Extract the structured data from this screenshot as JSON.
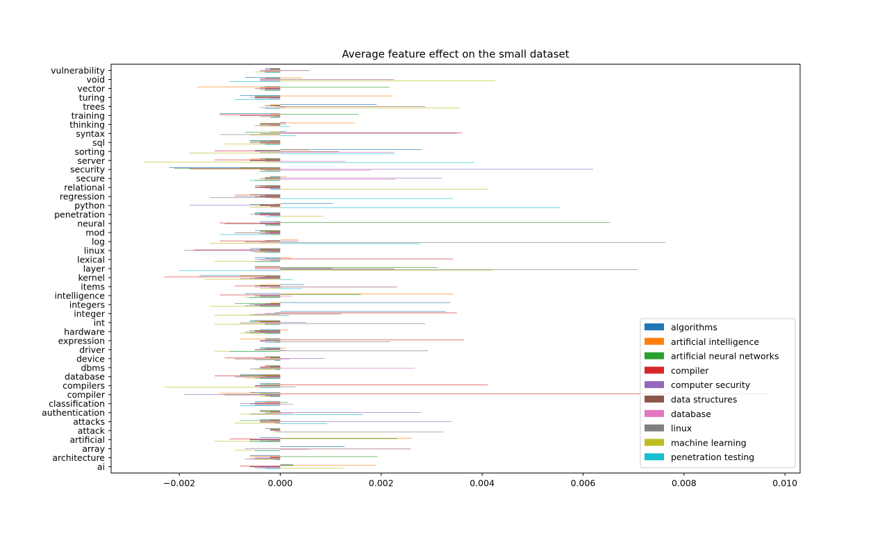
{
  "chart_data": {
    "type": "bar",
    "orientation": "horizontal",
    "title": "Average feature effect on the small dataset",
    "xlabel": "",
    "ylabel": "",
    "xlim": [
      -0.00335,
      0.0103
    ],
    "xticks": [
      -0.002,
      0.0,
      0.002,
      0.004,
      0.006,
      0.008,
      0.01
    ],
    "xtick_labels": [
      "−0.002",
      "0.000",
      "0.002",
      "0.004",
      "0.006",
      "0.008",
      "0.010"
    ],
    "grid": false,
    "legend_position": "lower right",
    "categories": [
      "ai",
      "architecture",
      "array",
      "artificial",
      "attack",
      "attacks",
      "authentication",
      "classification",
      "compiler",
      "compilers",
      "database",
      "dbms",
      "device",
      "driver",
      "expression",
      "hardware",
      "int",
      "integer",
      "integers",
      "intelligence",
      "items",
      "kernel",
      "layer",
      "lexical",
      "linux",
      "log",
      "mod",
      "neural",
      "penetration",
      "python",
      "regression",
      "relational",
      "secure",
      "security",
      "server",
      "sorting",
      "sql",
      "syntax",
      "thinking",
      "training",
      "trees",
      "turing",
      "vector",
      "void",
      "vulnerability"
    ],
    "series": [
      {
        "name": "algorithms",
        "color": "#1f77b4",
        "values": [
          0.00026,
          -0.0006,
          0.00128,
          -0.0004,
          -0.0003,
          -0.0004,
          -0.0004,
          -0.0005,
          -0.0006,
          -0.0004,
          -0.0008,
          -0.0003,
          -0.0003,
          -0.0004,
          -0.0003,
          -0.0004,
          -0.0006,
          0.00328,
          0.00337,
          -0.0007,
          0.00048,
          -0.0016,
          -0.0005,
          -0.0005,
          -0.0006,
          0.0,
          -0.0005,
          -0.0004,
          -0.0005,
          0.00104,
          -0.0006,
          -0.0005,
          -0.0002,
          -0.0022,
          -0.0004,
          0.0028,
          -0.0006,
          0.00012,
          0.00011,
          -0.0012,
          0.00191,
          -0.0008,
          -0.0003,
          -0.0007,
          -0.0003
        ]
      },
      {
        "name": "artificial intelligence",
        "color": "#ff7f0e",
        "values": [
          0.00189,
          -0.0006,
          0.0,
          0.00261,
          -0.0002,
          -0.0002,
          -0.0004,
          -0.0003,
          -0.0012,
          -0.0003,
          -0.0004,
          -0.0003,
          -0.0003,
          0.00011,
          -0.0008,
          0.00015,
          -0.0005,
          0.0,
          -0.0002,
          0.00343,
          -0.0004,
          -0.0008,
          -0.0005,
          0.00022,
          -0.0004,
          0.00036,
          -0.0004,
          -0.0001,
          0.0,
          -0.0001,
          -0.0009,
          -0.0004,
          0.00012,
          -0.0008,
          -0.0006,
          0.00058,
          -0.0002,
          -0.0002,
          0.00148,
          -0.0002,
          -0.0002,
          0.00222,
          -0.00165,
          0.00043,
          -0.0002
        ]
      },
      {
        "name": "artificial neural networks",
        "color": "#2ca02c",
        "values": [
          0.00025,
          0.00193,
          0.0,
          0.00231,
          -0.0002,
          -0.0008,
          -0.0004,
          0.00016,
          -0.0004,
          -0.0004,
          -0.0008,
          -0.0002,
          -0.0002,
          -0.0004,
          -0.0003,
          -0.0006,
          -0.0006,
          -0.0001,
          -0.0009,
          0.0016,
          -0.0005,
          -0.0003,
          0.00313,
          -0.0003,
          -0.0004,
          -0.0003,
          -0.0004,
          0.00653,
          -0.0005,
          -0.0006,
          -0.0003,
          -0.0003,
          -0.0003,
          -0.0021,
          -0.0003,
          -0.0005,
          -0.0006,
          -0.0007,
          -0.0004,
          0.00156,
          -0.0002,
          -0.0005,
          0.00217,
          -0.0003,
          -0.0002
        ]
      },
      {
        "name": "compiler",
        "color": "#d62728",
        "values": [
          -0.0008,
          -0.0002,
          0.0,
          -0.001,
          -0.0002,
          -0.0004,
          -0.0002,
          -0.0005,
          0.00965,
          0.00411,
          -0.0013,
          -0.0004,
          -0.0011,
          -0.0003,
          0.00364,
          -0.0005,
          -0.0004,
          0.0035,
          -0.0003,
          -0.0012,
          -0.0009,
          -0.0023,
          -0.0005,
          0.00342,
          -0.0017,
          -0.0012,
          -0.0003,
          -0.0012,
          -0.0004,
          -0.0004,
          -0.0004,
          -0.0005,
          -0.0003,
          -0.0018,
          -0.0013,
          -0.0013,
          -0.0004,
          0.0036,
          -0.0004,
          -0.0012,
          -0.0003,
          -0.0005,
          -0.0004,
          -0.0004,
          -0.0003
        ]
      },
      {
        "name": "computer security",
        "color": "#9467bd",
        "values": [
          -0.0006,
          -0.0005,
          -0.0007,
          -0.0006,
          -0.0002,
          0.0034,
          0.00279,
          -0.0008,
          -0.0019,
          -0.0005,
          -0.0003,
          -0.0004,
          0.00088,
          -0.0005,
          -0.0004,
          -0.0005,
          0.00052,
          -0.0003,
          -0.0006,
          -0.0004,
          -0.0004,
          -0.0004,
          0.00103,
          -0.0005,
          -0.0019,
          0.00036,
          -0.0002,
          -0.0004,
          -0.0006,
          -0.0018,
          -0.0009,
          -0.0004,
          0.0032,
          0.0062,
          -0.0006,
          -0.0005,
          0.0,
          0.0035,
          0.00011,
          0.0,
          -0.0001,
          -0.0006,
          -0.0003,
          -0.0004,
          -0.0004
        ]
      },
      {
        "name": "data structures",
        "color": "#8c564b",
        "values": [
          -0.0006,
          -0.0002,
          0.00258,
          -0.0006,
          0.0,
          -0.0004,
          -0.0003,
          -0.0006,
          -0.0011,
          -0.0005,
          -0.0009,
          -0.0004,
          -0.0009,
          -0.0005,
          -0.0004,
          -0.0007,
          -0.0008,
          0.00121,
          -0.0005,
          -0.0005,
          0.00232,
          -0.0005,
          0.00226,
          0.0,
          -0.0004,
          -0.0007,
          -0.0009,
          -0.0011,
          -0.0005,
          -0.0004,
          -0.0005,
          -0.0005,
          -0.0004,
          -0.0004,
          -0.0006,
          0.00117,
          -0.0006,
          -0.0004,
          -0.0004,
          -0.0008,
          0.00287,
          -0.0005,
          -0.0005,
          0.00226,
          0.00058
        ]
      },
      {
        "name": "database",
        "color": "#e377c2",
        "values": [
          -0.0004,
          -0.0006,
          0.00057,
          -0.0002,
          -0.0001,
          -0.0004,
          0.00025,
          0.00026,
          -0.0003,
          -0.0005,
          -0.0004,
          0.00267,
          0.00019,
          0.00011,
          -0.0004,
          -0.0004,
          -0.0003,
          -0.0005,
          -0.0004,
          0.00024,
          -0.0005,
          -0.0006,
          -0.0005,
          -0.0004,
          -0.0002,
          -0.0004,
          -0.0003,
          -0.0003,
          -0.0004,
          -0.0002,
          -0.0003,
          -0.0003,
          0.00228,
          0.0018,
          0.0013,
          0.00226,
          -0.0003,
          0.0,
          -0.0002,
          -0.0001,
          0.0001,
          -0.0002,
          -0.0003,
          -0.0004,
          -0.0004
        ]
      },
      {
        "name": "linux",
        "color": "#7f7f7f",
        "values": [
          -0.0005,
          -0.0007,
          0.0,
          -0.0004,
          0.00323,
          -0.0001,
          -0.0006,
          -0.0005,
          -0.0003,
          0.0003,
          -0.0005,
          -0.0006,
          -0.0005,
          0.00293,
          0.00218,
          -0.0006,
          0.00287,
          -0.0006,
          -0.0007,
          -0.0004,
          -0.0002,
          -0.0008,
          0.00708,
          -0.0002,
          -0.0006,
          0.00763,
          -0.0004,
          -0.0003,
          -0.0002,
          -0.0002,
          -0.0014,
          -0.0002,
          -0.0003,
          -0.0003,
          -0.0003,
          -0.0004,
          -0.0004,
          -0.0012,
          -0.0005,
          -0.0004,
          -0.0004,
          -0.0005,
          -0.0004,
          -0.0004,
          -0.0003
        ]
      },
      {
        "name": "machine learning",
        "color": "#bcbd22",
        "values": [
          0.00125,
          -0.0005,
          -0.0009,
          -0.0013,
          -0.0001,
          -0.0009,
          -0.0008,
          0.0,
          -0.0004,
          -0.0023,
          -0.0007,
          -0.0005,
          -0.0001,
          -0.0013,
          -0.0001,
          -0.0008,
          -0.0013,
          -0.0013,
          -0.0014,
          -0.0007,
          -0.0004,
          -0.0015,
          0.00421,
          -0.0013,
          -0.0005,
          -0.0014,
          -0.0002,
          -0.0002,
          0.00085,
          -0.0006,
          -0.0002,
          0.00412,
          -0.0005,
          -0.0004,
          -0.0027,
          -0.0018,
          -0.0011,
          -0.0006,
          -0.0004,
          -0.0002,
          0.00356,
          0.0,
          -0.0003,
          0.00426,
          -0.0005
        ]
      },
      {
        "name": "penetration testing",
        "color": "#17becf",
        "values": [
          -0.0003,
          -0.0001,
          -0.0005,
          -0.0006,
          0.0,
          0.00093,
          0.00164,
          -0.0008,
          -0.0002,
          -0.0004,
          -0.0004,
          -0.0001,
          -0.0001,
          -0.001,
          -0.0003,
          -0.0003,
          -0.0003,
          0.00018,
          -0.0004,
          -0.0006,
          0.00043,
          0.00024,
          -0.002,
          -0.0005,
          -0.0003,
          0.00277,
          -0.0012,
          -0.0003,
          -0.0003,
          0.00555,
          0.00342,
          -0.0002,
          -0.0006,
          -0.0004,
          0.00385,
          0.00227,
          -0.0003,
          0.00031,
          0.00019,
          -0.0002,
          -0.0003,
          -0.0009,
          -0.0003,
          -0.001,
          -0.0003
        ]
      }
    ]
  }
}
